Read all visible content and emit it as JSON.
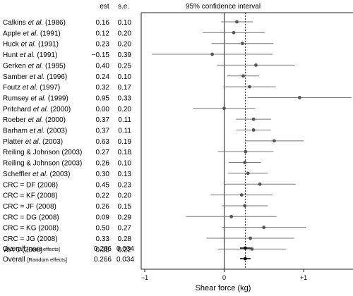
{
  "chart_data": {
    "type": "forest",
    "title": "95% confidence interval",
    "column_headers": {
      "estimate": "est",
      "se": "s.e."
    },
    "xlabel": "Shear force (kg)",
    "xlim": [
      -1.0,
      1.5
    ],
    "xticks": [
      {
        "value": -1,
        "label": "−1"
      },
      {
        "value": 0,
        "label": "0"
      },
      {
        "value": 1,
        "label": "+1"
      }
    ],
    "reference_lines": [
      {
        "value": 0,
        "style": "solid"
      },
      {
        "value": 0.266,
        "style": "dotted"
      }
    ],
    "studies": [
      {
        "author": "Calkins",
        "etal": true,
        "year": "(1986)",
        "est": "0.16",
        "se": "0.10",
        "x": 0.16,
        "lo": -0.04,
        "hi": 0.36
      },
      {
        "author": "Apple",
        "etal": true,
        "year": "(1991)",
        "est": "0.12",
        "se": "0.20",
        "x": 0.12,
        "lo": -0.27,
        "hi": 0.51
      },
      {
        "author": "Huck",
        "etal": true,
        "year": "(1991)",
        "est": "0.23",
        "se": "0.20",
        "x": 0.23,
        "lo": -0.16,
        "hi": 0.62
      },
      {
        "author": "Hunt",
        "etal": true,
        "year": "(1991)",
        "est": "−0.15",
        "se": "0.39",
        "x": -0.15,
        "lo": -0.91,
        "hi": 0.61
      },
      {
        "author": "Gerken",
        "etal": true,
        "year": "(1995)",
        "est": "0.40",
        "se": "0.25",
        "x": 0.4,
        "lo": -0.09,
        "hi": 0.89
      },
      {
        "author": "Samber",
        "etal": true,
        "year": "(1996)",
        "est": "0.24",
        "se": "0.10",
        "x": 0.24,
        "lo": 0.04,
        "hi": 0.44
      },
      {
        "author": "Foutz",
        "etal": true,
        "year": "(1997)",
        "est": "0.32",
        "se": "0.17",
        "x": 0.32,
        "lo": -0.01,
        "hi": 0.65
      },
      {
        "author": "Rumsey",
        "etal": true,
        "year": "(1999)",
        "est": "0.95",
        "se": "0.33",
        "x": 0.95,
        "lo": 0.3,
        "hi": 1.6
      },
      {
        "author": "Pritchard",
        "etal": true,
        "year": "(2000)",
        "est": "0.00",
        "se": "0.20",
        "x": 0.0,
        "lo": -0.39,
        "hi": 0.39
      },
      {
        "author": "Roeber",
        "etal": true,
        "year": "(2000)",
        "est": "0.37",
        "se": "0.11",
        "x": 0.37,
        "lo": 0.15,
        "hi": 0.59
      },
      {
        "author": "Barham",
        "etal": true,
        "year": "(2003)",
        "est": "0.37",
        "se": "0.11",
        "x": 0.37,
        "lo": 0.15,
        "hi": 0.59
      },
      {
        "author": "Platter",
        "etal": true,
        "year": "(2003)",
        "est": "0.63",
        "se": "0.19",
        "x": 0.63,
        "lo": 0.26,
        "hi": 1.0
      },
      {
        "author": "Reiling & Johnson",
        "etal": false,
        "year": "(2003)",
        "est": "0.27",
        "se": "0.18",
        "x": 0.27,
        "lo": -0.08,
        "hi": 0.62
      },
      {
        "author": "Reiling & Johnson",
        "etal": false,
        "year": "(2003)",
        "est": "0.26",
        "se": "0.10",
        "x": 0.26,
        "lo": 0.06,
        "hi": 0.46
      },
      {
        "author": "Scheffler",
        "etal": true,
        "year": "(2003)",
        "est": "0.30",
        "se": "0.13",
        "x": 0.3,
        "lo": 0.05,
        "hi": 0.55
      },
      {
        "author": "CRC = DF",
        "etal": false,
        "year": "(2008)",
        "est": "0.45",
        "se": "0.23",
        "x": 0.45,
        "lo": 0.0,
        "hi": 0.9
      },
      {
        "author": "CRC = KF",
        "etal": false,
        "year": "(2008)",
        "est": "0.22",
        "se": "0.20",
        "x": 0.22,
        "lo": -0.17,
        "hi": 0.61
      },
      {
        "author": "CRC = JF",
        "etal": false,
        "year": "(2008)",
        "est": "0.26",
        "se": "0.15",
        "x": 0.26,
        "lo": -0.03,
        "hi": 0.55
      },
      {
        "author": "CRC = DG",
        "etal": false,
        "year": "(2008)",
        "est": "0.09",
        "se": "0.29",
        "x": 0.09,
        "lo": -0.48,
        "hi": 0.66
      },
      {
        "author": "CRC = KG",
        "etal": false,
        "year": "(2008)",
        "est": "0.50",
        "se": "0.27",
        "x": 0.5,
        "lo": -0.03,
        "hi": 1.03
      },
      {
        "author": "CRC = JG",
        "etal": false,
        "year": "(2008)",
        "est": "0.33",
        "se": "0.28",
        "x": 0.33,
        "lo": -0.22,
        "hi": 0.88
      },
      {
        "author": "WA-1",
        "etal": false,
        "year": "(2008)",
        "est": "0.35",
        "se": "0.22",
        "x": 0.35,
        "lo": -0.08,
        "hi": 0.78
      }
    ],
    "overall": [
      {
        "label": "Overall",
        "qualifier": "[Fixed effects]",
        "est": "0.266",
        "se": "0.034",
        "x": 0.266,
        "lo": 0.199,
        "hi": 0.333
      },
      {
        "label": "Overall",
        "qualifier": "[Random effects]",
        "est": "0.266",
        "se": "0.034",
        "x": 0.266,
        "lo": 0.199,
        "hi": 0.333
      }
    ]
  }
}
